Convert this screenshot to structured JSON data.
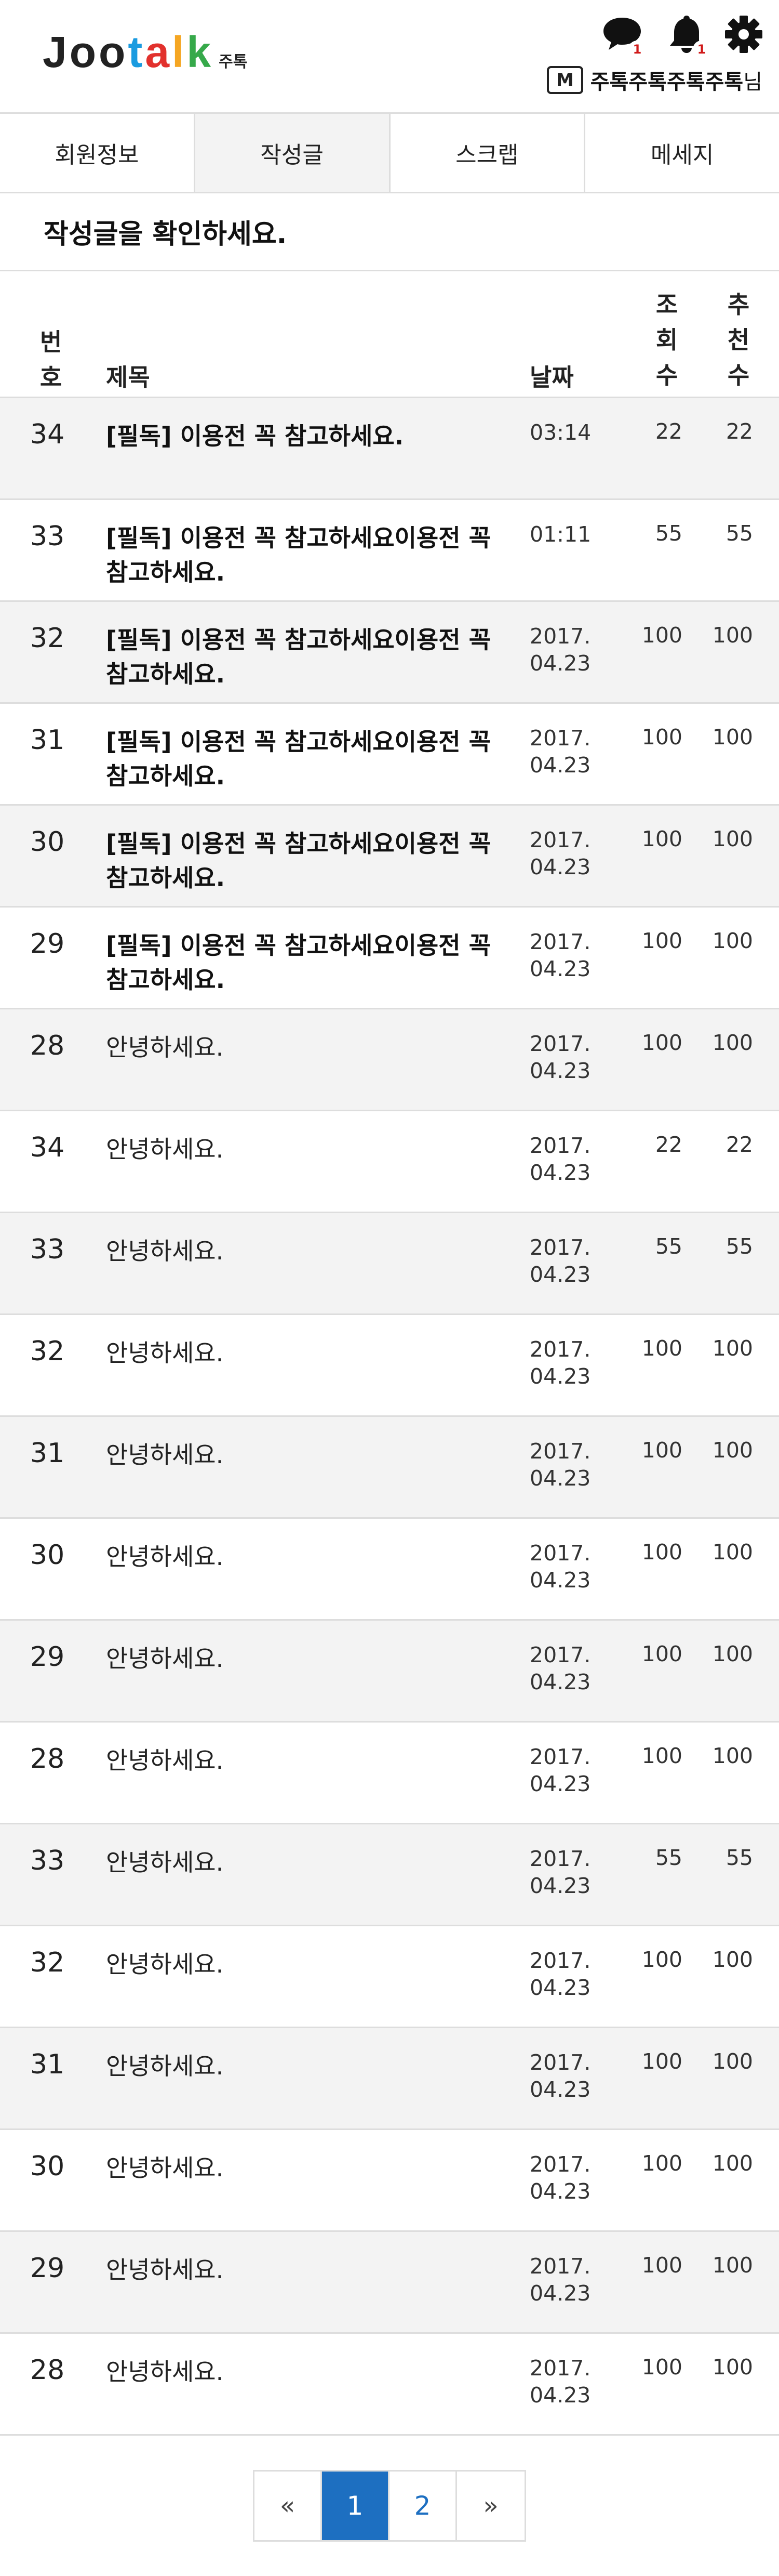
{
  "header": {
    "logo": {
      "letters": [
        {
          "ch": "J",
          "color": "#222222"
        },
        {
          "ch": "o",
          "color": "#222222"
        },
        {
          "ch": "o",
          "color": "#222222"
        },
        {
          "ch": "t",
          "color": "#1a9be0"
        },
        {
          "ch": "a",
          "color": "#e2312d"
        },
        {
          "ch": "l",
          "color": "#f5a623"
        },
        {
          "ch": "k",
          "color": "#36a94a"
        }
      ],
      "sub": "주톡"
    },
    "chat_badge": "1",
    "notify_badge": "1",
    "user_badge": "M",
    "user_name": "주톡주톡주톡주톡",
    "user_suffix": "님"
  },
  "tabs": [
    {
      "label": "회원정보",
      "active": false
    },
    {
      "label": "작성글",
      "active": true
    },
    {
      "label": "스크랩",
      "active": false
    },
    {
      "label": "메세지",
      "active": false
    }
  ],
  "section_title": "작성글을 확인하세요.",
  "table": {
    "headers": {
      "num": "번호",
      "title": "제목",
      "date": "날짜",
      "views": "조회수",
      "rec": "추천수"
    },
    "rows": [
      {
        "num": "34",
        "title": "[필독] 이용전 꼭 참고하세요.",
        "bold": true,
        "date": "03:14",
        "views": "22",
        "rec": "22"
      },
      {
        "num": "33",
        "title": "[필독] 이용전 꼭 참고하세요이용전 꼭 참고하세요.",
        "bold": true,
        "date": "01:11",
        "views": "55",
        "rec": "55"
      },
      {
        "num": "32",
        "title": "[필독] 이용전 꼭 참고하세요이용전 꼭 참고하세요.",
        "bold": true,
        "date": "2017.\n04.23",
        "views": "100",
        "rec": "100"
      },
      {
        "num": "31",
        "title": "[필독] 이용전 꼭 참고하세요이용전 꼭 참고하세요.",
        "bold": true,
        "date": "2017.\n04.23",
        "views": "100",
        "rec": "100"
      },
      {
        "num": "30",
        "title": "[필독] 이용전 꼭 참고하세요이용전 꼭 참고하세요.",
        "bold": true,
        "date": "2017.\n04.23",
        "views": "100",
        "rec": "100"
      },
      {
        "num": "29",
        "title": "[필독] 이용전 꼭 참고하세요이용전 꼭 참고하세요.",
        "bold": true,
        "date": "2017.\n04.23",
        "views": "100",
        "rec": "100"
      },
      {
        "num": "28",
        "title": "안녕하세요.",
        "bold": false,
        "date": "2017.\n04.23",
        "views": "100",
        "rec": "100"
      },
      {
        "num": "34",
        "title": "안녕하세요.",
        "bold": false,
        "date": "2017.\n04.23",
        "views": "22",
        "rec": "22"
      },
      {
        "num": "33",
        "title": "안녕하세요.",
        "bold": false,
        "date": "2017.\n04.23",
        "views": "55",
        "rec": "55"
      },
      {
        "num": "32",
        "title": "안녕하세요.",
        "bold": false,
        "date": "2017.\n04.23",
        "views": "100",
        "rec": "100"
      },
      {
        "num": "31",
        "title": "안녕하세요.",
        "bold": false,
        "date": "2017.\n04.23",
        "views": "100",
        "rec": "100"
      },
      {
        "num": "30",
        "title": "안녕하세요.",
        "bold": false,
        "date": "2017.\n04.23",
        "views": "100",
        "rec": "100"
      },
      {
        "num": "29",
        "title": "안녕하세요.",
        "bold": false,
        "date": "2017.\n04.23",
        "views": "100",
        "rec": "100"
      },
      {
        "num": "28",
        "title": "안녕하세요.",
        "bold": false,
        "date": "2017.\n04.23",
        "views": "100",
        "rec": "100"
      },
      {
        "num": "33",
        "title": "안녕하세요.",
        "bold": false,
        "date": "2017.\n04.23",
        "views": "55",
        "rec": "55"
      },
      {
        "num": "32",
        "title": "안녕하세요.",
        "bold": false,
        "date": "2017.\n04.23",
        "views": "100",
        "rec": "100"
      },
      {
        "num": "31",
        "title": "안녕하세요.",
        "bold": false,
        "date": "2017.\n04.23",
        "views": "100",
        "rec": "100"
      },
      {
        "num": "30",
        "title": "안녕하세요.",
        "bold": false,
        "date": "2017.\n04.23",
        "views": "100",
        "rec": "100"
      },
      {
        "num": "29",
        "title": "안녕하세요.",
        "bold": false,
        "date": "2017.\n04.23",
        "views": "100",
        "rec": "100"
      },
      {
        "num": "28",
        "title": "안녕하세요.",
        "bold": false,
        "date": "2017.\n04.23",
        "views": "100",
        "rec": "100"
      }
    ]
  },
  "pagination": {
    "first": "«",
    "pages": [
      "1",
      "2"
    ],
    "current": "1",
    "next": "»"
  },
  "colors": {
    "accent": "#1d6fc1",
    "row_shade": "#f3f3f3",
    "border": "#dddddd",
    "badge": "#d01919"
  },
  "icons": {
    "chat": "speech-bubble-icon",
    "notify": "bell-icon",
    "settings": "gear-icon"
  }
}
